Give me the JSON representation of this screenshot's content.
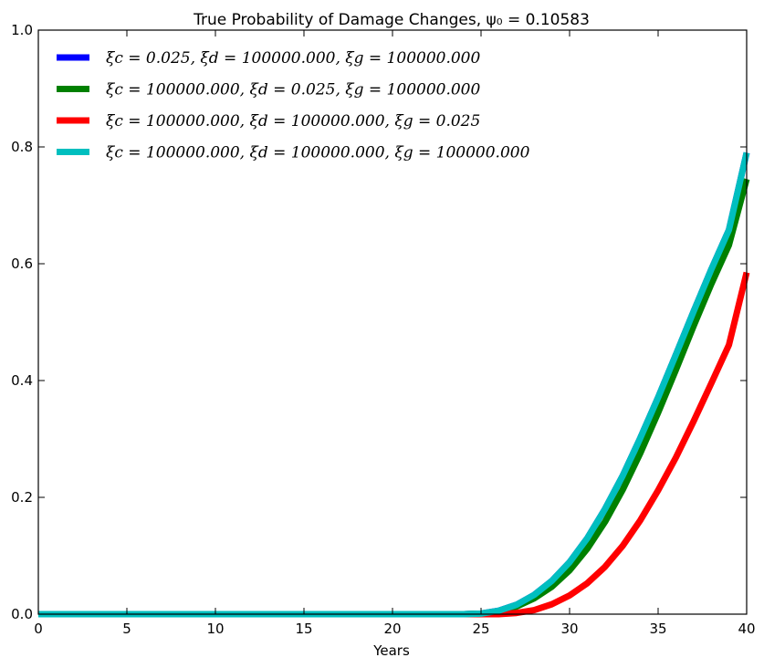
{
  "chart_data": {
    "type": "line",
    "title": "True Probability of Damage Changes, ψ₀ = 0.10583",
    "xlabel": "Years",
    "ylabel": "",
    "xlim": [
      0,
      40
    ],
    "ylim": [
      0,
      1.0
    ],
    "xticks": [
      0,
      5,
      10,
      15,
      20,
      25,
      30,
      35,
      40
    ],
    "yticks": [
      0.0,
      0.2,
      0.4,
      0.6,
      0.8,
      1.0
    ],
    "xtick_labels": [
      "0",
      "5",
      "10",
      "15",
      "20",
      "25",
      "30",
      "35",
      "40"
    ],
    "ytick_labels": [
      "0.0",
      "0.2",
      "0.4",
      "0.6",
      "0.8",
      "1.0"
    ],
    "grid": false,
    "legend_position": "top-left",
    "x": [
      0,
      5,
      10,
      15,
      20,
      24,
      25,
      26,
      27,
      28,
      29,
      30,
      31,
      32,
      33,
      34,
      35,
      36,
      37,
      38,
      39,
      40
    ],
    "series": [
      {
        "name": "ξc = 0.025, ξd = 100000.000, ξg = 100000.000",
        "color": "#0000ff",
        "values": [
          0,
          0,
          0,
          0,
          0,
          0,
          0.001,
          0.006,
          0.016,
          0.033,
          0.057,
          0.089,
          0.13,
          0.18,
          0.237,
          0.302,
          0.371,
          0.444,
          0.518,
          0.59,
          0.658,
          0.79
        ]
      },
      {
        "name": "ξc = 100000.000, ξd = 0.025, ξg = 100000.000",
        "color": "#008000",
        "values": [
          0,
          0,
          0,
          0,
          0,
          0,
          0.001,
          0.005,
          0.013,
          0.027,
          0.047,
          0.075,
          0.112,
          0.158,
          0.213,
          0.276,
          0.345,
          0.418,
          0.493,
          0.565,
          0.632,
          0.745
        ]
      },
      {
        "name": "ξc = 100000.000, ξd = 100000.000, ξg = 0.025",
        "color": "#ff0000",
        "values": [
          0,
          0,
          0,
          0,
          0,
          0,
          0,
          0,
          0.002,
          0.007,
          0.017,
          0.032,
          0.053,
          0.081,
          0.117,
          0.161,
          0.212,
          0.268,
          0.33,
          0.395,
          0.461,
          0.585
        ]
      },
      {
        "name": "ξc = 100000.000, ξd = 100000.000, ξg = 100000.000",
        "color": "#00bfbf",
        "values": [
          0,
          0,
          0,
          0,
          0,
          0,
          0.001,
          0.006,
          0.016,
          0.033,
          0.057,
          0.089,
          0.13,
          0.18,
          0.237,
          0.302,
          0.371,
          0.444,
          0.518,
          0.59,
          0.658,
          0.79
        ]
      }
    ]
  }
}
